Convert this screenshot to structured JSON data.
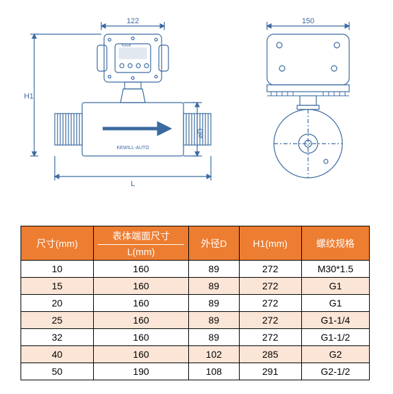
{
  "diagram": {
    "front": {
      "dim_top": "122",
      "dim_h1": "H1",
      "dim_l": "L",
      "dim_d": "⌀D",
      "arrow_label": "KEWILL-AUTO"
    },
    "side": {
      "dim_top": "150"
    },
    "stroke": "#3b6aa0",
    "text_color": "#3b6aa0"
  },
  "table": {
    "header_bg": "#ed7d31",
    "alt_bg": "#fbe5d6",
    "columns": [
      {
        "label": "尺寸(mm)"
      },
      {
        "label": "表体端面尺寸",
        "sub": "L(mm)"
      },
      {
        "label": "外径D"
      },
      {
        "label": "H1(mm)"
      },
      {
        "label": "螺纹规格"
      }
    ],
    "rows": [
      [
        "10",
        "160",
        "89",
        "272",
        "M30*1.5"
      ],
      [
        "15",
        "160",
        "89",
        "272",
        "G1"
      ],
      [
        "20",
        "160",
        "89",
        "272",
        "G1"
      ],
      [
        "25",
        "160",
        "89",
        "272",
        "G1-1/4"
      ],
      [
        "32",
        "160",
        "89",
        "272",
        "G1-1/2"
      ],
      [
        "40",
        "160",
        "102",
        "285",
        "G2"
      ],
      [
        "50",
        "190",
        "108",
        "291",
        "G2-1/2"
      ]
    ]
  }
}
